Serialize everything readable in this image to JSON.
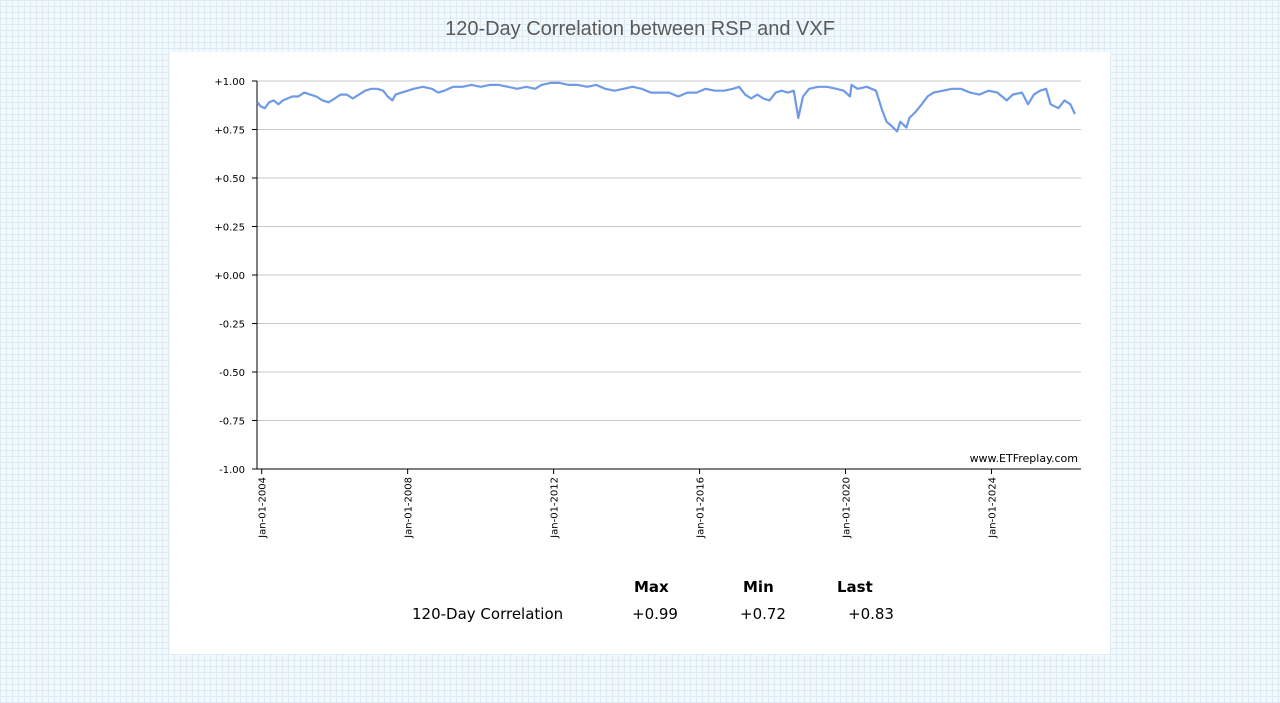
{
  "title": "120-Day Correlation between RSP and VXF",
  "chart_data": {
    "type": "line",
    "title": "120-Day Correlation between RSP and VXF",
    "xlabel": "",
    "ylabel": "",
    "ylim": [
      -1.0,
      1.0
    ],
    "xlim": [
      "2003-11-15",
      "2026-06-15"
    ],
    "y_ticks": [
      "+1.00",
      "+0.75",
      "+0.50",
      "+0.25",
      "+0.00",
      "-0.25",
      "-0.50",
      "-0.75",
      "-1.00"
    ],
    "x_ticks": [
      "Jan-01-2004",
      "Jan-01-2008",
      "Jan-01-2012",
      "Jan-01-2016",
      "Jan-01-2020",
      "Jan-01-2024"
    ],
    "grid": true,
    "watermark": "www.ETFreplay.com",
    "color": "#6f9ae6",
    "series": [
      {
        "name": "120-Day Correlation",
        "points": [
          [
            "2003-11-20",
            0.89
          ],
          [
            "2003-12-20",
            0.87
          ],
          [
            "2004-02-01",
            0.86
          ],
          [
            "2004-03-15",
            0.89
          ],
          [
            "2004-05-01",
            0.9
          ],
          [
            "2004-06-15",
            0.88
          ],
          [
            "2004-08-01",
            0.9
          ],
          [
            "2004-09-15",
            0.91
          ],
          [
            "2004-11-01",
            0.92
          ],
          [
            "2005-01-01",
            0.92
          ],
          [
            "2005-03-01",
            0.94
          ],
          [
            "2005-05-01",
            0.93
          ],
          [
            "2005-07-01",
            0.92
          ],
          [
            "2005-09-01",
            0.9
          ],
          [
            "2005-11-01",
            0.89
          ],
          [
            "2006-01-01",
            0.91
          ],
          [
            "2006-03-01",
            0.93
          ],
          [
            "2006-05-01",
            0.93
          ],
          [
            "2006-07-01",
            0.91
          ],
          [
            "2006-09-01",
            0.93
          ],
          [
            "2006-11-01",
            0.95
          ],
          [
            "2007-01-01",
            0.96
          ],
          [
            "2007-03-01",
            0.96
          ],
          [
            "2007-05-01",
            0.95
          ],
          [
            "2007-06-15",
            0.92
          ],
          [
            "2007-08-01",
            0.9
          ],
          [
            "2007-09-01",
            0.93
          ],
          [
            "2007-11-01",
            0.94
          ],
          [
            "2008-01-01",
            0.95
          ],
          [
            "2008-03-01",
            0.96
          ],
          [
            "2008-06-01",
            0.97
          ],
          [
            "2008-09-01",
            0.96
          ],
          [
            "2008-11-01",
            0.94
          ],
          [
            "2009-01-01",
            0.95
          ],
          [
            "2009-04-01",
            0.97
          ],
          [
            "2009-07-01",
            0.97
          ],
          [
            "2009-10-01",
            0.98
          ],
          [
            "2010-01-01",
            0.97
          ],
          [
            "2010-04-01",
            0.98
          ],
          [
            "2010-07-01",
            0.98
          ],
          [
            "2010-10-01",
            0.97
          ],
          [
            "2011-01-01",
            0.96
          ],
          [
            "2011-04-01",
            0.97
          ],
          [
            "2011-07-01",
            0.96
          ],
          [
            "2011-09-01",
            0.98
          ],
          [
            "2011-12-01",
            0.99
          ],
          [
            "2012-03-01",
            0.99
          ],
          [
            "2012-06-01",
            0.98
          ],
          [
            "2012-09-01",
            0.98
          ],
          [
            "2012-12-01",
            0.97
          ],
          [
            "2013-03-01",
            0.98
          ],
          [
            "2013-06-01",
            0.96
          ],
          [
            "2013-09-01",
            0.95
          ],
          [
            "2013-12-01",
            0.96
          ],
          [
            "2014-03-01",
            0.97
          ],
          [
            "2014-06-01",
            0.96
          ],
          [
            "2014-09-01",
            0.94
          ],
          [
            "2014-12-01",
            0.94
          ],
          [
            "2015-03-01",
            0.94
          ],
          [
            "2015-06-01",
            0.92
          ],
          [
            "2015-09-01",
            0.94
          ],
          [
            "2015-12-01",
            0.94
          ],
          [
            "2016-03-01",
            0.96
          ],
          [
            "2016-06-01",
            0.95
          ],
          [
            "2016-09-01",
            0.95
          ],
          [
            "2016-12-01",
            0.96
          ],
          [
            "2017-02-01",
            0.97
          ],
          [
            "2017-04-01",
            0.93
          ],
          [
            "2017-06-01",
            0.91
          ],
          [
            "2017-08-01",
            0.93
          ],
          [
            "2017-10-01",
            0.91
          ],
          [
            "2017-12-01",
            0.9
          ],
          [
            "2018-02-01",
            0.94
          ],
          [
            "2018-04-01",
            0.95
          ],
          [
            "2018-06-01",
            0.94
          ],
          [
            "2018-08-01",
            0.95
          ],
          [
            "2018-09-15",
            0.81
          ],
          [
            "2018-11-01",
            0.92
          ],
          [
            "2019-01-01",
            0.96
          ],
          [
            "2019-04-01",
            0.97
          ],
          [
            "2019-07-01",
            0.97
          ],
          [
            "2019-10-01",
            0.96
          ],
          [
            "2019-12-15",
            0.95
          ],
          [
            "2020-02-15",
            0.92
          ],
          [
            "2020-03-01",
            0.98
          ],
          [
            "2020-05-01",
            0.96
          ],
          [
            "2020-08-01",
            0.97
          ],
          [
            "2020-11-01",
            0.95
          ],
          [
            "2021-01-01",
            0.85
          ],
          [
            "2021-02-15",
            0.79
          ],
          [
            "2021-04-01",
            0.77
          ],
          [
            "2021-06-01",
            0.74
          ],
          [
            "2021-07-01",
            0.79
          ],
          [
            "2021-09-01",
            0.76
          ],
          [
            "2021-10-01",
            0.81
          ],
          [
            "2021-12-01",
            0.84
          ],
          [
            "2022-02-01",
            0.88
          ],
          [
            "2022-04-01",
            0.92
          ],
          [
            "2022-06-01",
            0.94
          ],
          [
            "2022-09-01",
            0.95
          ],
          [
            "2022-12-01",
            0.96
          ],
          [
            "2023-03-01",
            0.96
          ],
          [
            "2023-06-01",
            0.94
          ],
          [
            "2023-09-01",
            0.93
          ],
          [
            "2023-12-01",
            0.95
          ],
          [
            "2024-03-01",
            0.94
          ],
          [
            "2024-06-01",
            0.9
          ],
          [
            "2024-08-01",
            0.93
          ],
          [
            "2024-11-01",
            0.94
          ],
          [
            "2025-01-01",
            0.88
          ],
          [
            "2025-03-01",
            0.93
          ],
          [
            "2025-05-01",
            0.95
          ],
          [
            "2025-07-01",
            0.96
          ],
          [
            "2025-08-15",
            0.88
          ],
          [
            "2025-11-01",
            0.86
          ],
          [
            "2026-01-01",
            0.9
          ],
          [
            "2026-03-01",
            0.88
          ],
          [
            "2026-04-15",
            0.83
          ]
        ]
      }
    ]
  },
  "stats": {
    "headers": [
      "Max",
      "Min",
      "Last"
    ],
    "row_label": "120-Day Correlation",
    "values": [
      "+0.99",
      "+0.72",
      "+0.83"
    ]
  }
}
